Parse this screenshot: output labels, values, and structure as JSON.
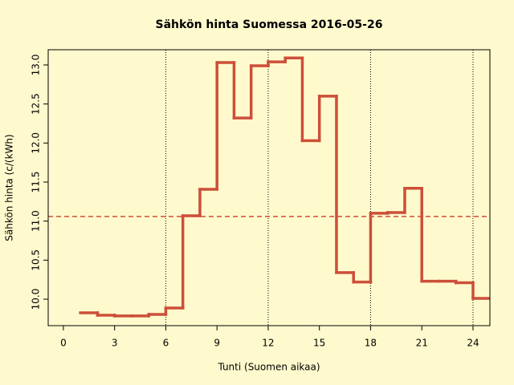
{
  "chart_data": {
    "type": "step",
    "title": "Sähkön hinta Suomessa 2016-05-26",
    "xlabel": "Tunti (Suomen aikaa)",
    "ylabel": "Sähkön hinta (c/(kWh)",
    "x": [
      1,
      2,
      3,
      4,
      5,
      6,
      7,
      8,
      9,
      10,
      11,
      12,
      13,
      14,
      15,
      16,
      17,
      18,
      19,
      20,
      21,
      22,
      23,
      24
    ],
    "values": [
      9.825,
      9.795,
      9.785,
      9.785,
      9.805,
      9.887,
      11.068,
      11.407,
      13.03,
      12.32,
      12.99,
      13.04,
      13.09,
      12.03,
      12.6,
      10.34,
      10.22,
      11.1,
      11.11,
      11.42,
      10.23,
      10.23,
      10.21,
      10.01
    ],
    "color": "#cd4f39",
    "background": "#fffacd",
    "mean_line": 11.06,
    "vlines": [
      6,
      12,
      18,
      24
    ],
    "xlim": [
      -0.89,
      24.99
    ],
    "ylim": [
      9.661,
      13.195
    ],
    "xticks": [
      0,
      3,
      6,
      9,
      12,
      15,
      18,
      21,
      24
    ],
    "yticks": [
      {
        "value": 10,
        "label": "10.0"
      },
      {
        "value": 10.5,
        "label": "10.5"
      },
      {
        "value": 11,
        "label": "11.0"
      },
      {
        "value": 11.5,
        "label": "11.5"
      },
      {
        "value": 12,
        "label": "12.0"
      },
      {
        "value": 12.5,
        "label": "12.5"
      },
      {
        "value": 13,
        "label": "13.0"
      }
    ]
  }
}
